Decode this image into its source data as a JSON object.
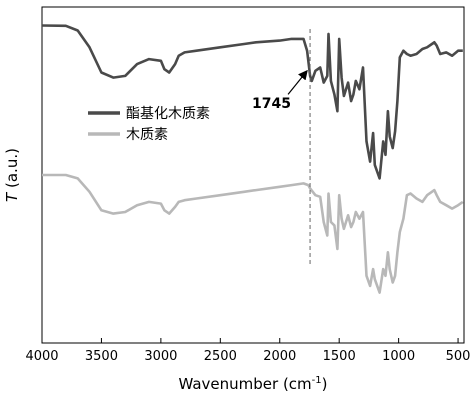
{
  "chart_data": {
    "type": "line",
    "title": "",
    "xlabel": "Wavenumber (cm",
    "xlabel_sup": "-1",
    "xlabel_close": ")",
    "ylabel_italic": "T",
    "ylabel_rest": " (a.u.)",
    "xlim": [
      4000,
      450
    ],
    "x_reversed": true,
    "yticks_shown": false,
    "x_ticks": [
      4000,
      3500,
      3000,
      2500,
      2000,
      1500,
      1000,
      500
    ],
    "x_tick_labels": [
      "4000",
      "3500",
      "3000",
      "2500",
      "2000",
      "1500",
      "1000",
      "500"
    ],
    "legend_position": "middle-left",
    "annotation": {
      "text": "1745",
      "x": 1745
    },
    "series": [
      {
        "name": "酯基化木质素",
        "color": "#4a4a4a",
        "points": [
          [
            4000,
            0.945
          ],
          [
            3800,
            0.944
          ],
          [
            3700,
            0.93
          ],
          [
            3600,
            0.88
          ],
          [
            3500,
            0.805
          ],
          [
            3400,
            0.79
          ],
          [
            3300,
            0.795
          ],
          [
            3200,
            0.83
          ],
          [
            3100,
            0.845
          ],
          [
            3000,
            0.84
          ],
          [
            2970,
            0.815
          ],
          [
            2930,
            0.805
          ],
          [
            2880,
            0.83
          ],
          [
            2850,
            0.855
          ],
          [
            2800,
            0.865
          ],
          [
            2700,
            0.87
          ],
          [
            2500,
            0.88
          ],
          [
            2300,
            0.89
          ],
          [
            2200,
            0.895
          ],
          [
            2000,
            0.9
          ],
          [
            1900,
            0.905
          ],
          [
            1800,
            0.905
          ],
          [
            1770,
            0.87
          ],
          [
            1745,
            0.795
          ],
          [
            1730,
            0.78
          ],
          [
            1700,
            0.81
          ],
          [
            1660,
            0.82
          ],
          [
            1630,
            0.775
          ],
          [
            1600,
            0.795
          ],
          [
            1590,
            0.92
          ],
          [
            1570,
            0.78
          ],
          [
            1540,
            0.74
          ],
          [
            1515,
            0.69
          ],
          [
            1500,
            0.905
          ],
          [
            1480,
            0.79
          ],
          [
            1460,
            0.735
          ],
          [
            1425,
            0.775
          ],
          [
            1400,
            0.72
          ],
          [
            1380,
            0.74
          ],
          [
            1360,
            0.78
          ],
          [
            1330,
            0.755
          ],
          [
            1300,
            0.82
          ],
          [
            1270,
            0.6
          ],
          [
            1240,
            0.54
          ],
          [
            1215,
            0.625
          ],
          [
            1200,
            0.53
          ],
          [
            1160,
            0.49
          ],
          [
            1130,
            0.6
          ],
          [
            1110,
            0.56
          ],
          [
            1090,
            0.69
          ],
          [
            1075,
            0.615
          ],
          [
            1050,
            0.58
          ],
          [
            1030,
            0.63
          ],
          [
            1010,
            0.72
          ],
          [
            990,
            0.85
          ],
          [
            960,
            0.87
          ],
          [
            930,
            0.86
          ],
          [
            900,
            0.855
          ],
          [
            850,
            0.86
          ],
          [
            800,
            0.875
          ],
          [
            760,
            0.88
          ],
          [
            720,
            0.89
          ],
          [
            700,
            0.895
          ],
          [
            680,
            0.885
          ],
          [
            650,
            0.86
          ],
          [
            600,
            0.865
          ],
          [
            550,
            0.855
          ],
          [
            500,
            0.87
          ],
          [
            460,
            0.87
          ]
        ]
      },
      {
        "name": "木质素",
        "color": "#b8b8b8",
        "points": [
          [
            4000,
            0.5
          ],
          [
            3800,
            0.5
          ],
          [
            3700,
            0.49
          ],
          [
            3600,
            0.45
          ],
          [
            3500,
            0.395
          ],
          [
            3400,
            0.385
          ],
          [
            3300,
            0.39
          ],
          [
            3200,
            0.41
          ],
          [
            3100,
            0.42
          ],
          [
            3000,
            0.415
          ],
          [
            2970,
            0.395
          ],
          [
            2930,
            0.385
          ],
          [
            2880,
            0.405
          ],
          [
            2850,
            0.42
          ],
          [
            2800,
            0.425
          ],
          [
            2700,
            0.43
          ],
          [
            2500,
            0.44
          ],
          [
            2300,
            0.45
          ],
          [
            2200,
            0.455
          ],
          [
            2000,
            0.465
          ],
          [
            1900,
            0.47
          ],
          [
            1800,
            0.475
          ],
          [
            1760,
            0.47
          ],
          [
            1745,
            0.46
          ],
          [
            1700,
            0.44
          ],
          [
            1660,
            0.435
          ],
          [
            1630,
            0.36
          ],
          [
            1600,
            0.32
          ],
          [
            1590,
            0.445
          ],
          [
            1570,
            0.36
          ],
          [
            1540,
            0.35
          ],
          [
            1515,
            0.28
          ],
          [
            1500,
            0.44
          ],
          [
            1480,
            0.37
          ],
          [
            1460,
            0.34
          ],
          [
            1425,
            0.38
          ],
          [
            1400,
            0.345
          ],
          [
            1380,
            0.36
          ],
          [
            1360,
            0.39
          ],
          [
            1330,
            0.37
          ],
          [
            1300,
            0.39
          ],
          [
            1270,
            0.2
          ],
          [
            1240,
            0.17
          ],
          [
            1215,
            0.22
          ],
          [
            1200,
            0.19
          ],
          [
            1160,
            0.15
          ],
          [
            1130,
            0.22
          ],
          [
            1110,
            0.2
          ],
          [
            1090,
            0.27
          ],
          [
            1075,
            0.22
          ],
          [
            1050,
            0.18
          ],
          [
            1030,
            0.2
          ],
          [
            1010,
            0.27
          ],
          [
            990,
            0.33
          ],
          [
            960,
            0.37
          ],
          [
            930,
            0.44
          ],
          [
            900,
            0.445
          ],
          [
            850,
            0.43
          ],
          [
            800,
            0.42
          ],
          [
            760,
            0.44
          ],
          [
            720,
            0.45
          ],
          [
            700,
            0.455
          ],
          [
            680,
            0.44
          ],
          [
            650,
            0.42
          ],
          [
            600,
            0.41
          ],
          [
            550,
            0.4
          ],
          [
            500,
            0.41
          ],
          [
            460,
            0.42
          ]
        ]
      }
    ]
  }
}
